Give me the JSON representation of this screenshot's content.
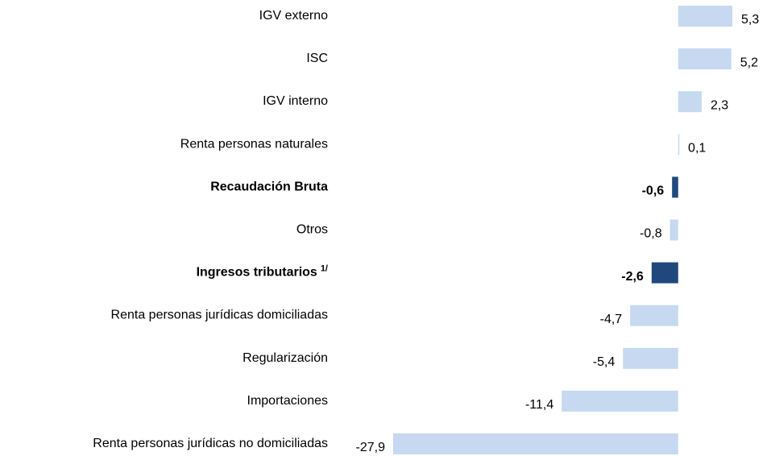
{
  "chart_data": {
    "type": "barh",
    "categories": [
      "IGV externo",
      "ISC",
      "IGV interno",
      "Renta personas naturales",
      "Recaudación Bruta",
      "Otros",
      "Ingresos tributarios",
      "Renta personas jurídicas domiciliadas",
      "Regularización",
      "Importaciones",
      "Renta personas jurídicas no domiciliadas"
    ],
    "category_superscripts": [
      null,
      null,
      null,
      null,
      null,
      null,
      "1/",
      null,
      null,
      null,
      null
    ],
    "values": [
      5.3,
      5.2,
      2.3,
      0.1,
      -0.6,
      -0.8,
      -2.6,
      -4.7,
      -5.4,
      -11.4,
      -27.9
    ],
    "value_labels": [
      "5,3",
      "5,2",
      "2,3",
      "0,1",
      "-0,6",
      "-0,8",
      "-2,6",
      "-4,7",
      "-5,4",
      "-11,4",
      "-27,9"
    ],
    "colors": [
      "#c6d9f1",
      "#c6d9f1",
      "#c6d9f1",
      "#c6d9f1",
      "#1f497d",
      "#c6d9f1",
      "#1f497d",
      "#c6d9f1",
      "#c6d9f1",
      "#c6d9f1",
      "#c6d9f1"
    ],
    "bold": [
      false,
      false,
      false,
      false,
      true,
      false,
      true,
      false,
      false,
      false,
      false
    ]
  }
}
